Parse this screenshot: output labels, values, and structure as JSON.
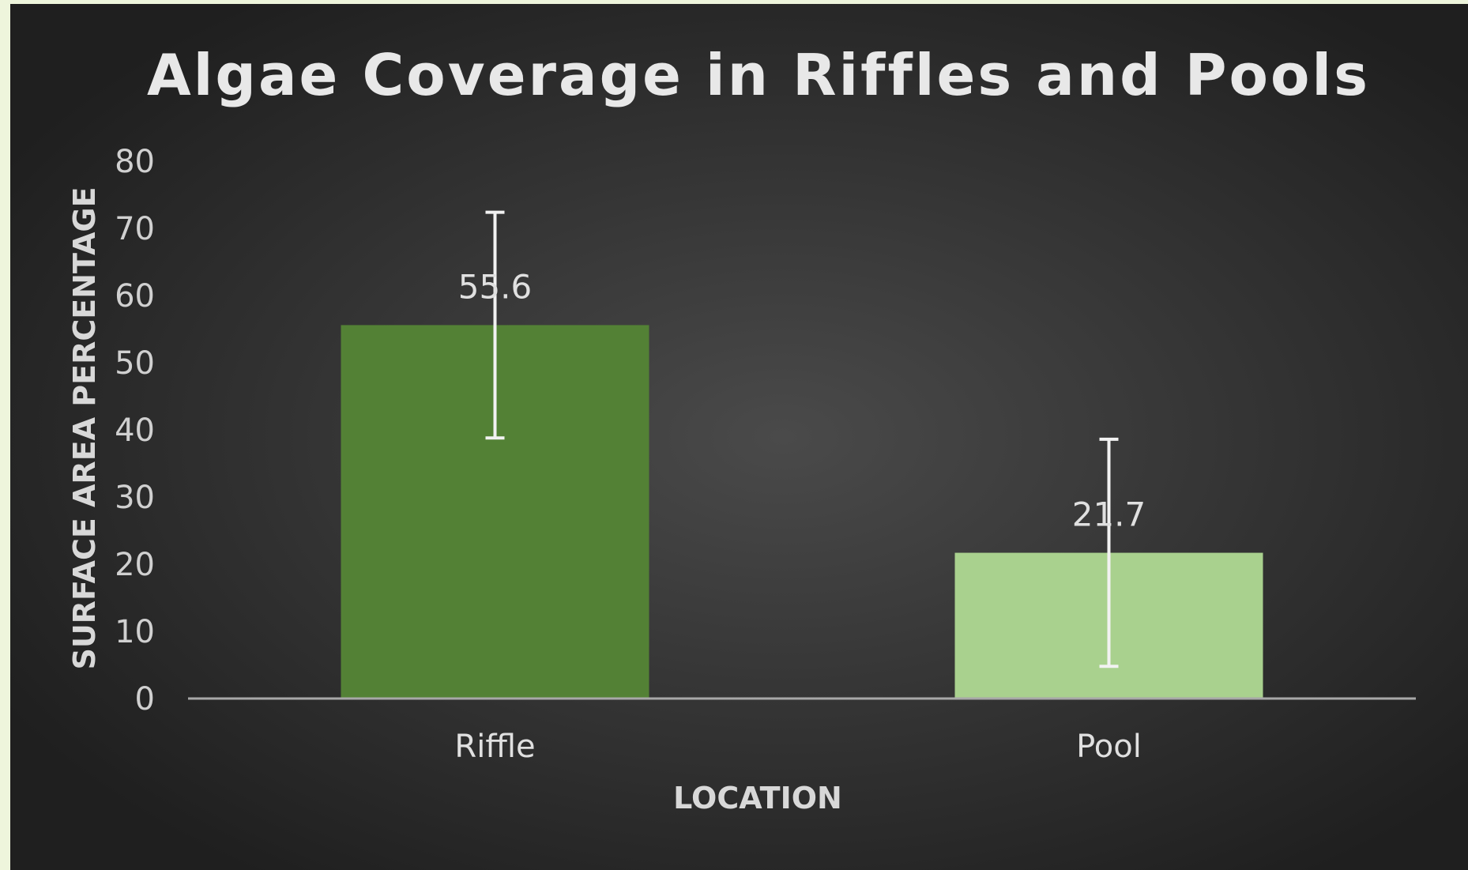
{
  "chart_data": {
    "type": "bar",
    "title": "Algae Coverage in Riffles and Pools",
    "xlabel": "LOCATION",
    "ylabel": "SURFACE AREA PERCENTAGE",
    "categories": [
      "Riffle",
      "Pool"
    ],
    "values": [
      55.6,
      21.7
    ],
    "data_labels": [
      "55.6",
      "21.7"
    ],
    "error_bars": [
      {
        "low": 38.8,
        "high": 72.4
      },
      {
        "low": 4.8,
        "high": 38.6
      }
    ],
    "ylim": [
      0,
      80
    ],
    "yticks": [
      0,
      10,
      20,
      30,
      40,
      50,
      60,
      70,
      80
    ],
    "grid": false,
    "legend": "none"
  },
  "colors": {
    "background_center": "#4a4a4a",
    "background_edge": "#1f1f1f",
    "page_background": "#eef5dc",
    "bar_riffle": "#538135",
    "bar_pool": "#a9d18e",
    "text": "#e0e0e0",
    "tick_text": "#d0d0d0",
    "axis_line": "#a8a8a8",
    "error_bar": "#f2f2f2"
  }
}
